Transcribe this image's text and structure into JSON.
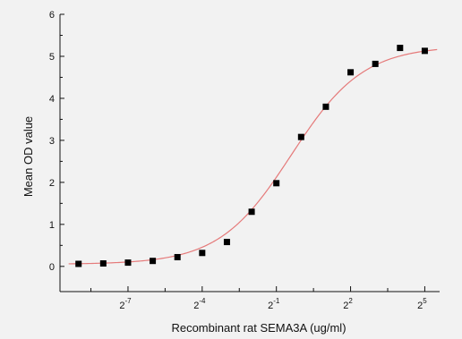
{
  "chart_data": {
    "type": "scatter",
    "xlabel": "Recombinant rat SEMA3A (ug/ml)",
    "ylabel": "Mean OD value",
    "x_scale": "log2",
    "xlim_log2": [
      -9.75,
      5.6
    ],
    "ylim": [
      -0.6,
      6
    ],
    "y_ticks": [
      "0",
      "1",
      "2",
      "3",
      "4",
      "5",
      "6"
    ],
    "x_tick_labels": [
      {
        "base": "2",
        "exp": "-7",
        "log2": -7
      },
      {
        "base": "2",
        "exp": "-4",
        "log2": -4
      },
      {
        "base": "2",
        "exp": "-1",
        "log2": -1
      },
      {
        "base": "2",
        "exp": "2",
        "log2": 2
      },
      {
        "base": "2",
        "exp": "5",
        "log2": 5
      }
    ],
    "minor_ticks_log2": [
      -8.5,
      -5.5,
      -2.5,
      0.5,
      3.5
    ],
    "points": [
      {
        "x_log2": -9,
        "y": 0.06
      },
      {
        "x_log2": -8,
        "y": 0.07
      },
      {
        "x_log2": -7,
        "y": 0.09
      },
      {
        "x_log2": -6,
        "y": 0.13
      },
      {
        "x_log2": -5,
        "y": 0.22
      },
      {
        "x_log2": -4,
        "y": 0.32
      },
      {
        "x_log2": -3,
        "y": 0.58
      },
      {
        "x_log2": -2,
        "y": 1.3
      },
      {
        "x_log2": -1,
        "y": 1.98
      },
      {
        "x_log2": 0,
        "y": 3.08
      },
      {
        "x_log2": 1,
        "y": 3.8
      },
      {
        "x_log2": 2,
        "y": 4.62
      },
      {
        "x_log2": 3,
        "y": 4.82
      },
      {
        "x_log2": 4,
        "y": 5.2
      },
      {
        "x_log2": 5,
        "y": 5.13
      }
    ],
    "fit": {
      "model": "4PL",
      "bottom": 0.05,
      "top": 5.25,
      "ec50_log2": -0.4,
      "slope": 0.45,
      "color": "#e57a7a"
    },
    "marker_color": "#000000"
  }
}
